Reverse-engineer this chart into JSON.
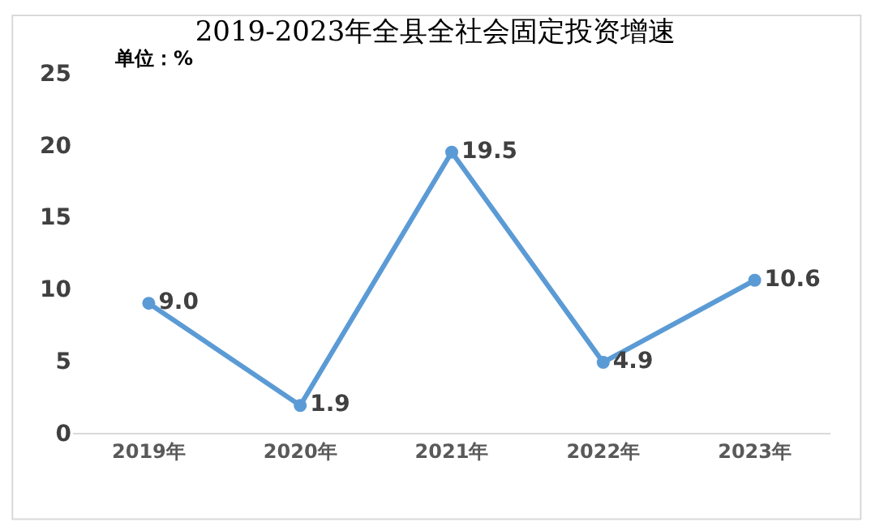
{
  "chart_data": {
    "type": "line",
    "title": "2019-2023年全县全社会固定投资增速",
    "annotations": [
      "单位：%"
    ],
    "categories": [
      "2019年",
      "2020年",
      "2021年",
      "2022年",
      "2023年"
    ],
    "series": [
      {
        "color": "#5b9bd5",
        "values": [
          9.0,
          1.9,
          19.5,
          4.9,
          10.6
        ],
        "value_labels": [
          "9.0",
          "1.9",
          "19.5",
          "4.9",
          "10.6"
        ]
      }
    ],
    "ylim": [
      0,
      25
    ],
    "yticks": [
      0,
      5,
      10,
      15,
      20,
      25
    ],
    "legend": false,
    "marker": "circle",
    "line_style": "solid"
  }
}
